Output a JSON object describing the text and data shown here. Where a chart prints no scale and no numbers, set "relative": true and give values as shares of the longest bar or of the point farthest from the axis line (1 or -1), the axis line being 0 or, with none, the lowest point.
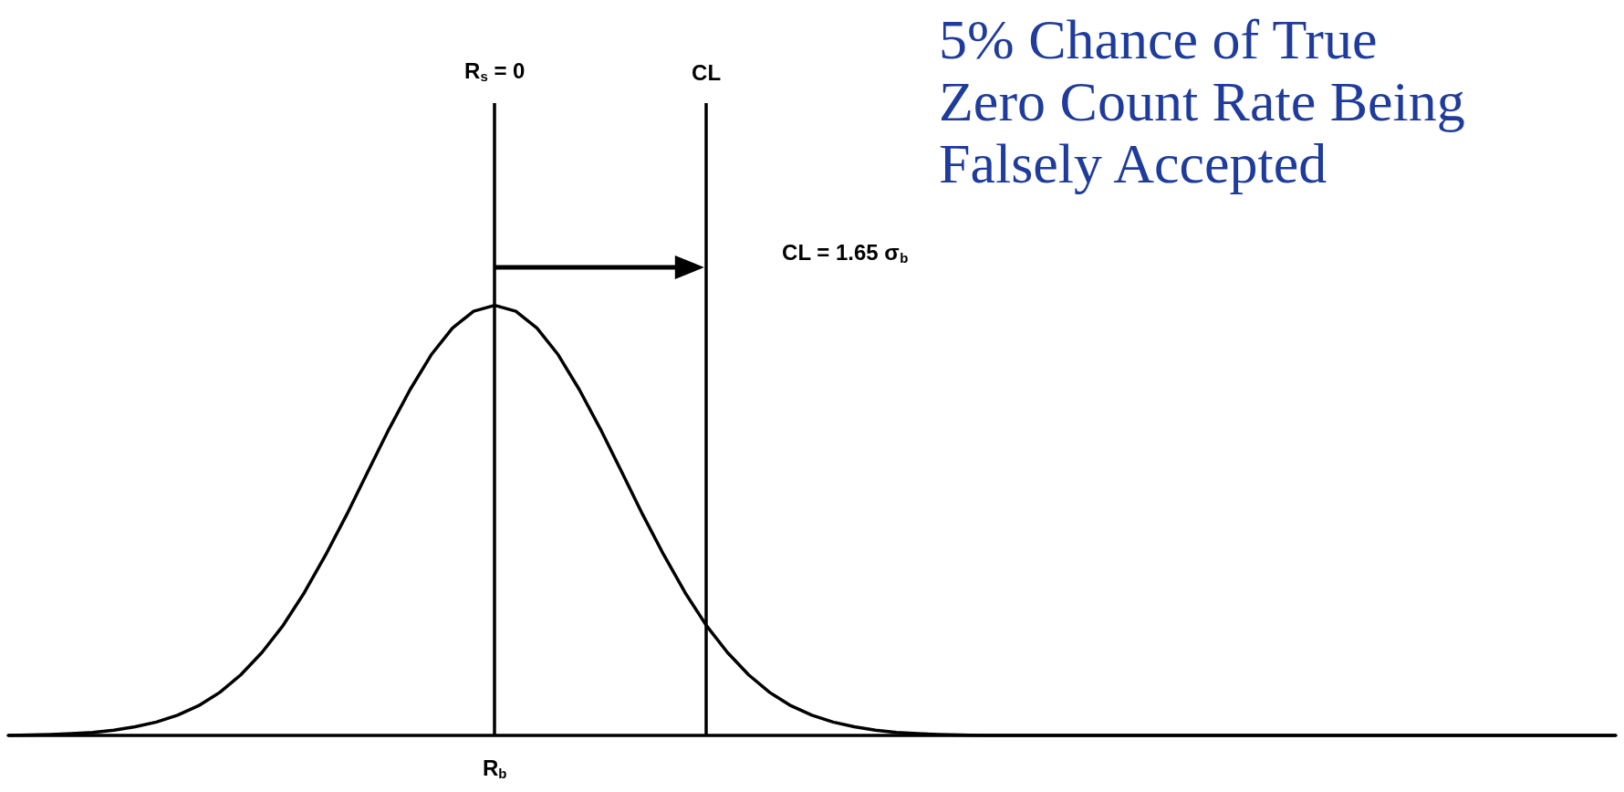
{
  "chart_data": {
    "type": "line",
    "title": "5% Chance of True Zero Count Rate Being Falsely Accepted",
    "relative": true,
    "categories": [
      null,
      null,
      null,
      null,
      null,
      null,
      null,
      null,
      null,
      null,
      null,
      null,
      null,
      null,
      null,
      null,
      null,
      null,
      null,
      null,
      null,
      null,
      null,
      null,
      null,
      null,
      null,
      null,
      null,
      null,
      null,
      null,
      null,
      null,
      null,
      null,
      null,
      null,
      null,
      null,
      null,
      null,
      null,
      null,
      null,
      null,
      null,
      null,
      null,
      null,
      null,
      null,
      null,
      null,
      null,
      null,
      null,
      null,
      null,
      null,
      null,
      null,
      null,
      null,
      null,
      null,
      null,
      null,
      null,
      null,
      null,
      null,
      null,
      null,
      null,
      null,
      null
    ],
    "series": [
      {
        "color": "#000000",
        "values": [
          0,
          0.001,
          0.002,
          0.004,
          0.007,
          0.012,
          0.02,
          0.031,
          0.047,
          0.069,
          0.1,
          0.141,
          0.193,
          0.256,
          0.332,
          0.419,
          0.513,
          0.613,
          0.712,
          0.804,
          0.885,
          0.947,
          0.986,
          1,
          0.986,
          0.947,
          0.885,
          0.804,
          0.712,
          0.613,
          0.513,
          0.419,
          0.332,
          0.256,
          0.193,
          0.141,
          0.1,
          0.069,
          0.047,
          0.031,
          0.02,
          0.012,
          0.007,
          0.004,
          0.002,
          0.001,
          0,
          0,
          0,
          0,
          0,
          0,
          0,
          0,
          0,
          0,
          0,
          0,
          0,
          0,
          0,
          0,
          0,
          0,
          0,
          0,
          0,
          0,
          0,
          0,
          0,
          0,
          0,
          0,
          0,
          0,
          0
        ]
      }
    ],
    "annotations": [
      "R$_{s}$ = 0",
      "CL",
      "CL = 1.65 σ$_{b}$",
      "R$_{b}$"
    ],
    "grid": false,
    "marker": "none",
    "line_style": "solid"
  }
}
